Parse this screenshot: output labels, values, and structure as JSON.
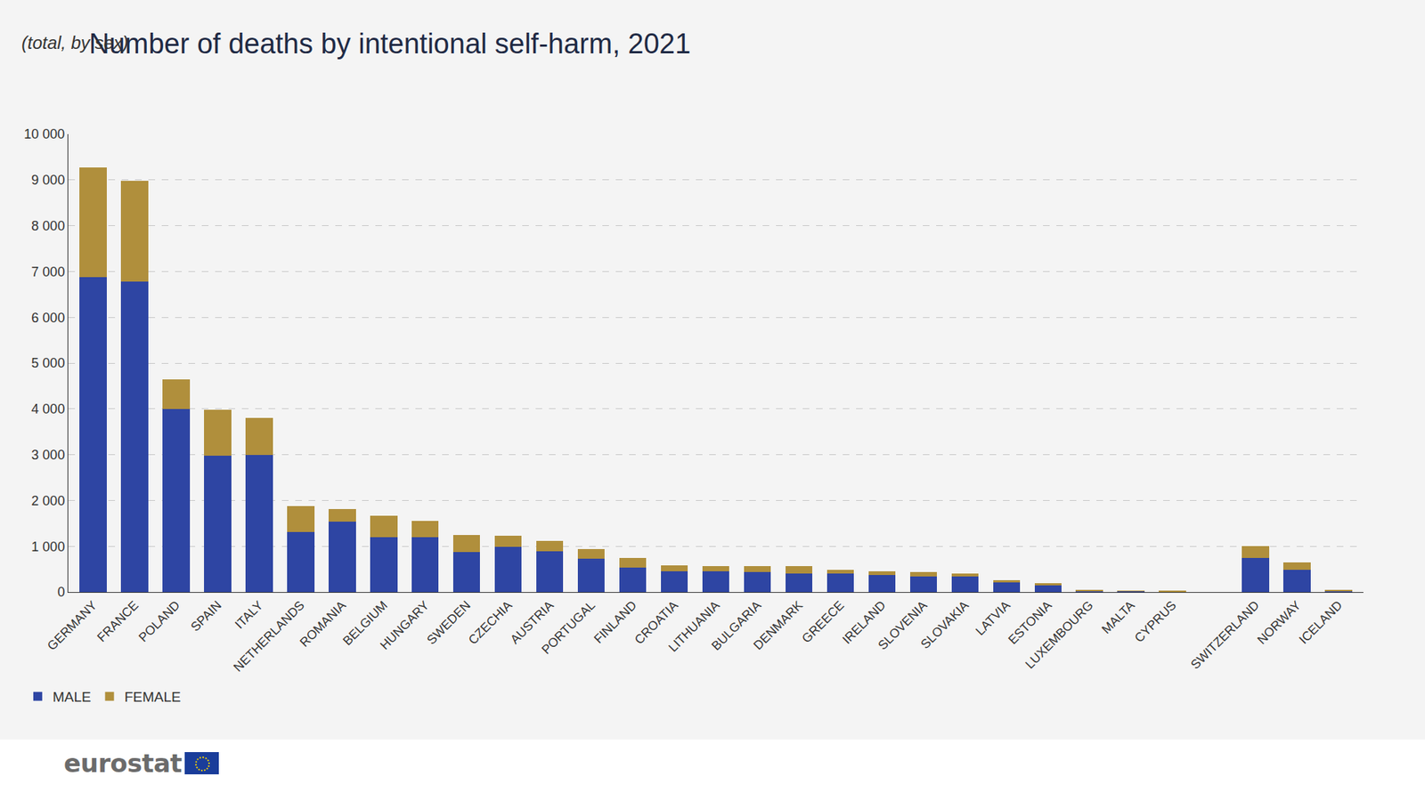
{
  "chart_data": {
    "type": "bar",
    "stacked": true,
    "title": "Number of deaths by intentional self-harm, 2021",
    "subtitle": "(total, by sex)",
    "categories": [
      "GERMANY",
      "FRANCE",
      "POLAND",
      "SPAIN",
      "ITALY",
      "NETHERLANDS",
      "ROMANIA",
      "BELGIUM",
      "HUNGARY",
      "SWEDEN",
      "CZECHIA",
      "AUSTRIA",
      "PORTUGAL",
      "FINLAND",
      "CROATIA",
      "LITHUANIA",
      "BULGARIA",
      "DENMARK",
      "GREECE",
      "IRELAND",
      "SLOVENIA",
      "SLOVAKIA",
      "LATVIA",
      "ESTONIA",
      "LUXEMBOURG",
      "MALTA",
      "CYPRUS",
      null,
      "SWITZERLAND",
      "NORWAY",
      "ICELAND"
    ],
    "series": [
      {
        "name": "MALE",
        "color": "#2e45a3",
        "values": [
          6870,
          6780,
          3990,
          2980,
          3000,
          1310,
          1540,
          1190,
          1200,
          880,
          980,
          890,
          730,
          530,
          460,
          450,
          440,
          410,
          400,
          370,
          340,
          340,
          210,
          150,
          30,
          25,
          15,
          null,
          740,
          480,
          30
        ]
      },
      {
        "name": "FEMALE",
        "color": "#b08f3c",
        "values": [
          2410,
          2200,
          660,
          1000,
          810,
          570,
          270,
          470,
          360,
          360,
          250,
          220,
          210,
          220,
          120,
          120,
          130,
          150,
          80,
          90,
          100,
          70,
          50,
          40,
          10,
          5,
          5,
          null,
          270,
          170,
          10
        ]
      }
    ],
    "ylim": [
      0,
      10000
    ],
    "yticks": [
      0,
      {
        "value": 1000,
        "label": "1 000"
      },
      {
        "value": 2000,
        "label": "2 000"
      },
      {
        "value": 3000,
        "label": "3 000"
      },
      {
        "value": 4000,
        "label": "4 000"
      },
      {
        "value": 5000,
        "label": "5 000"
      },
      {
        "value": 6000,
        "label": "6 000"
      },
      {
        "value": 7000,
        "label": "7 000"
      },
      {
        "value": 8000,
        "label": "8 000"
      },
      {
        "value": 9000,
        "label": "9 000"
      },
      {
        "value": 10000,
        "label": "10 000"
      }
    ],
    "grid": true,
    "legend": "bottom left"
  },
  "logo": "eurostat"
}
